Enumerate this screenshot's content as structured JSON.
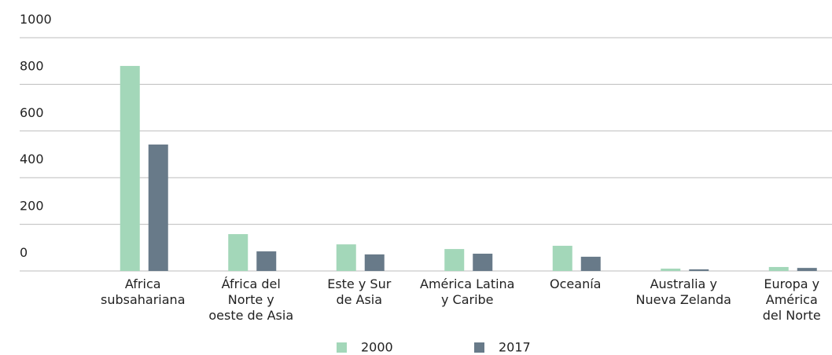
{
  "chart_data": {
    "type": "bar",
    "categories": [
      [
        "Africa",
        "subsahariana"
      ],
      [
        "África del",
        "Norte y",
        "oeste de Asia"
      ],
      [
        "Este y Sur",
        "de Asia"
      ],
      [
        "América Latina",
        "y Caribe"
      ],
      [
        "Oceanía"
      ],
      [
        "Australia y",
        "Nueva Zelanda"
      ],
      [
        "Europa y",
        "América",
        "del Norte"
      ]
    ],
    "series": [
      {
        "name": "2000",
        "color": "#a3d7b9",
        "values": [
          879,
          158,
          114,
          94,
          108,
          10,
          17
        ]
      },
      {
        "name": "2017",
        "color": "#687a89",
        "values": [
          542,
          84,
          71,
          74,
          61,
          7,
          13
        ]
      }
    ],
    "ylim": [
      0,
      1000
    ],
    "yticks": [
      0,
      200,
      400,
      600,
      800,
      1000
    ],
    "grid": true
  }
}
